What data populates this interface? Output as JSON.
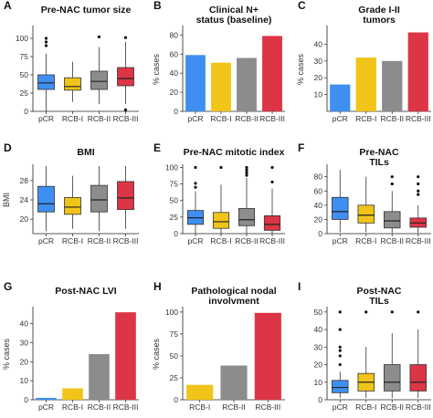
{
  "colors": {
    "pCR": "#3f8ff2",
    "RCB-I": "#f0c419",
    "RCB-II": "#8c8c8c",
    "RCB-III": "#dc3545"
  },
  "chart_data": [
    {
      "panel": "A",
      "type": "box",
      "title_lines": [
        "Pre-NAC tumor size"
      ],
      "ylabel": "",
      "categories": [
        "pCR",
        "RCB-I",
        "RCB-II",
        "RCB-III"
      ],
      "ylim": [
        0,
        115
      ],
      "yticks": [
        0,
        25,
        50,
        75,
        100
      ],
      "grid": false,
      "boxes": [
        {
          "low": 0,
          "q1": 30,
          "median": 39,
          "q3": 50,
          "high": 79,
          "outliers": [
            90,
            95,
            100
          ]
        },
        {
          "low": 13,
          "q1": 29,
          "median": 34,
          "q3": 46,
          "high": 68,
          "outliers": []
        },
        {
          "low": 10,
          "q1": 30,
          "median": 41,
          "q3": 55,
          "high": 88,
          "outliers": [
            102
          ]
        },
        {
          "low": 10,
          "q1": 35,
          "median": 45,
          "q3": 60,
          "high": 95,
          "outliers": [
            101,
            2
          ]
        }
      ]
    },
    {
      "panel": "B",
      "type": "bar",
      "title_lines": [
        "Clinical N+",
        "status (baseline)"
      ],
      "ylabel": "% cases",
      "categories": [
        "pCR",
        "RCB-I",
        "RCB-II",
        "RCB-III"
      ],
      "values": [
        59,
        51,
        56,
        79
      ],
      "ylim": [
        0,
        88
      ],
      "yticks": [
        0,
        20,
        40,
        60,
        80
      ],
      "grid": false
    },
    {
      "panel": "C",
      "type": "bar",
      "title_lines": [
        "Grade I-II",
        "tumors"
      ],
      "ylabel": "% cases",
      "categories": [
        "pCR",
        "RCB-I",
        "RCB-II",
        "RCB-III"
      ],
      "values": [
        16,
        32,
        30,
        47
      ],
      "ylim": [
        0,
        50
      ],
      "yticks": [
        10,
        20,
        30,
        40
      ],
      "grid": false
    },
    {
      "panel": "D",
      "type": "box",
      "title_lines": [
        "BMI"
      ],
      "ylabel": "BMI",
      "categories": [
        "pCR",
        "RCB-I",
        "RCB-II",
        "RCB-III"
      ],
      "ylim": [
        17,
        31
      ],
      "yticks": [
        20,
        24,
        28
      ],
      "grid": false,
      "boxes": [
        {
          "low": 17.5,
          "q1": 21.5,
          "median": 23.2,
          "q3": 26.8,
          "high": 31,
          "outliers": []
        },
        {
          "low": 18,
          "q1": 21,
          "median": 22.5,
          "q3": 24.5,
          "high": 29,
          "outliers": []
        },
        {
          "low": 17.5,
          "q1": 21.5,
          "median": 24,
          "q3": 27,
          "high": 31,
          "outliers": []
        },
        {
          "low": 18,
          "q1": 22,
          "median": 24.4,
          "q3": 27.8,
          "high": 31,
          "outliers": []
        }
      ]
    },
    {
      "panel": "E",
      "type": "box",
      "title_lines": [
        "Pre-NAC mitotic index"
      ],
      "ylabel": "",
      "categories": [
        "pCR",
        "RCB-I",
        "RCB-II",
        "RCB-III"
      ],
      "ylim": [
        0,
        102
      ],
      "yticks": [
        0,
        25,
        50,
        75,
        100
      ],
      "grid": false,
      "boxes": [
        {
          "low": 0,
          "q1": 14,
          "median": 24,
          "q3": 35,
          "high": 64,
          "outliers": [
            70,
            76,
            100
          ]
        },
        {
          "low": 0,
          "q1": 8,
          "median": 18,
          "q3": 32,
          "high": 74,
          "outliers": [
            100
          ]
        },
        {
          "low": 0,
          "q1": 12,
          "median": 21,
          "q3": 38,
          "high": 84,
          "outliers": [
            88,
            92,
            96,
            100
          ]
        },
        {
          "low": 0,
          "q1": 5,
          "median": 14,
          "q3": 27,
          "high": 68,
          "outliers": [
            78,
            100
          ]
        }
      ]
    },
    {
      "panel": "F",
      "type": "box",
      "title_lines": [
        "Pre-NAC",
        "TILs"
      ],
      "ylabel": "",
      "categories": [
        "pCR",
        "RCB-I",
        "RCB-II",
        "RCB-III"
      ],
      "ylim": [
        0,
        95
      ],
      "yticks": [
        0,
        20,
        40,
        60,
        80
      ],
      "grid": false,
      "boxes": [
        {
          "low": 2,
          "q1": 20,
          "median": 31,
          "q3": 51,
          "high": 90,
          "outliers": []
        },
        {
          "low": 2,
          "q1": 15,
          "median": 26,
          "q3": 40,
          "high": 80,
          "outliers": []
        },
        {
          "low": 1,
          "q1": 8,
          "median": 18,
          "q3": 31,
          "high": 60,
          "outliers": [
            70,
            80
          ]
        },
        {
          "low": 1,
          "q1": 9,
          "median": 15,
          "q3": 22,
          "high": 40,
          "outliers": [
            55,
            60,
            70,
            80
          ]
        }
      ]
    },
    {
      "panel": "G",
      "type": "bar",
      "title_lines": [
        "Post-NAC LVI"
      ],
      "ylabel": "% cases",
      "categories": [
        "pCR",
        "RCB-I",
        "RCB-II",
        "RCB-III"
      ],
      "values": [
        1,
        6,
        24,
        46
      ],
      "ylim": [
        0,
        48
      ],
      "yticks": [
        0,
        10,
        20,
        30,
        40
      ],
      "grid": false
    },
    {
      "panel": "H",
      "type": "bar",
      "title_lines": [
        "Pathological nodal",
        "involvment"
      ],
      "ylabel": "% cases",
      "categories": [
        "RCB-I",
        "RCB-II",
        "RCB-III"
      ],
      "series_colors": [
        "RCB-I",
        "RCB-II",
        "RCB-III"
      ],
      "values": [
        17,
        39,
        99
      ],
      "ylim": [
        0,
        104
      ],
      "yticks": [
        0,
        25,
        50,
        75,
        100
      ],
      "grid": false
    },
    {
      "panel": "I",
      "type": "box",
      "title_lines": [
        "Post-NAC",
        "TILs"
      ],
      "ylabel": "",
      "categories": [
        "pCR",
        "RCB-I",
        "RCB-II",
        "RCB-III"
      ],
      "ylim": [
        0,
        52
      ],
      "yticks": [
        0,
        10,
        20,
        30,
        40,
        50
      ],
      "grid": false,
      "boxes": [
        {
          "low": 1,
          "q1": 4,
          "median": 7,
          "q3": 11,
          "high": 16,
          "outliers": [
            20,
            25,
            28,
            30,
            40,
            50
          ]
        },
        {
          "low": 1,
          "q1": 5,
          "median": 10,
          "q3": 15,
          "high": 30,
          "outliers": [
            50
          ]
        },
        {
          "low": 1,
          "q1": 5,
          "median": 10,
          "q3": 20,
          "high": 38,
          "outliers": [
            50
          ]
        },
        {
          "low": 1,
          "q1": 5,
          "median": 10,
          "q3": 20,
          "high": 40,
          "outliers": [
            50
          ]
        }
      ]
    }
  ]
}
